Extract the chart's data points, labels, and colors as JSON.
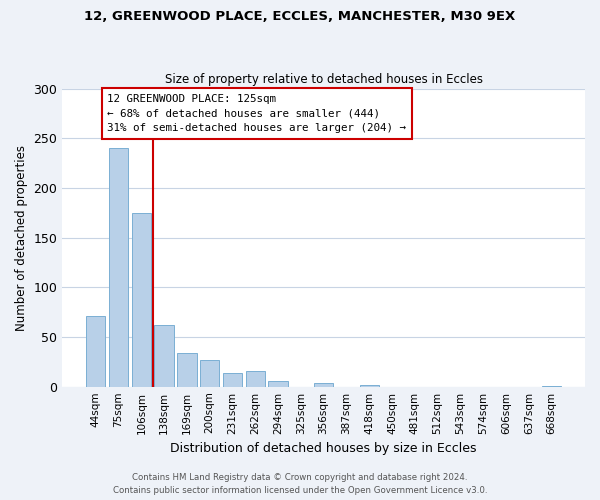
{
  "title": "12, GREENWOOD PLACE, ECCLES, MANCHESTER, M30 9EX",
  "subtitle": "Size of property relative to detached houses in Eccles",
  "xlabel": "Distribution of detached houses by size in Eccles",
  "ylabel": "Number of detached properties",
  "categories": [
    "44sqm",
    "75sqm",
    "106sqm",
    "138sqm",
    "169sqm",
    "200sqm",
    "231sqm",
    "262sqm",
    "294sqm",
    "325sqm",
    "356sqm",
    "387sqm",
    "418sqm",
    "450sqm",
    "481sqm",
    "512sqm",
    "543sqm",
    "574sqm",
    "606sqm",
    "637sqm",
    "668sqm"
  ],
  "values": [
    71,
    240,
    175,
    62,
    34,
    27,
    14,
    16,
    6,
    0,
    4,
    0,
    2,
    0,
    0,
    0,
    0,
    0,
    0,
    0,
    1
  ],
  "bar_color": "#b8d0e8",
  "bar_edge_color": "#7aafd4",
  "vline_x": 2.5,
  "vline_color": "#cc0000",
  "annotation_line1": "12 GREENWOOD PLACE: 125sqm",
  "annotation_line2": "← 68% of detached houses are smaller (444)",
  "annotation_line3": "31% of semi-detached houses are larger (204) →",
  "annotation_box_color": "#cc0000",
  "ylim": [
    0,
    300
  ],
  "yticks": [
    0,
    50,
    100,
    150,
    200,
    250,
    300
  ],
  "footer1": "Contains HM Land Registry data © Crown copyright and database right 2024.",
  "footer2": "Contains public sector information licensed under the Open Government Licence v3.0.",
  "background_color": "#eef2f8",
  "plot_bg_color": "#ffffff"
}
